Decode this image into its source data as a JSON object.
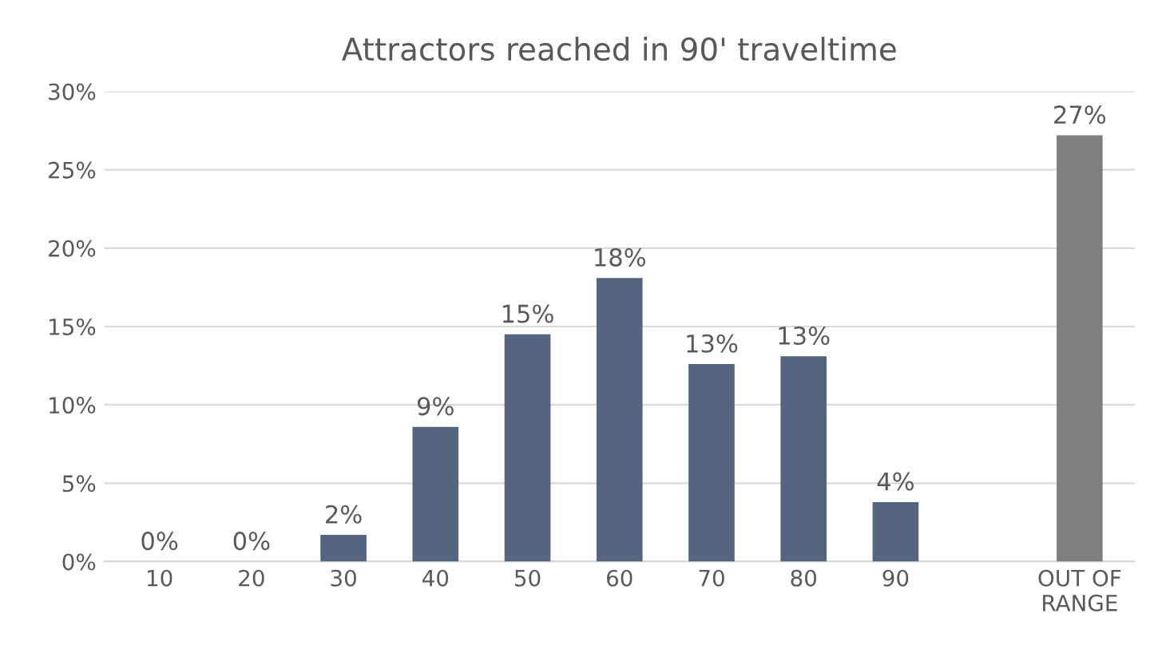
{
  "chart_data": {
    "type": "bar",
    "title": "Attractors reached in 90' traveltime",
    "categories": [
      "10",
      "20",
      "30",
      "40",
      "50",
      "60",
      "70",
      "80",
      "90",
      null,
      "OUT OF\nRANGE"
    ],
    "values": [
      0,
      0,
      1.7,
      8.6,
      14.5,
      18.1,
      12.6,
      13.1,
      3.8,
      null,
      27.2
    ],
    "value_labels": [
      "0%",
      "0%",
      "2%",
      "9%",
      "15%",
      "18%",
      "13%",
      "13%",
      "4%",
      null,
      "27%"
    ],
    "colors": [
      "#55647f",
      "#55647f",
      "#55647f",
      "#55647f",
      "#55647f",
      "#55647f",
      "#55647f",
      "#55647f",
      "#55647f",
      "#55647f",
      "#7f7f7f"
    ],
    "ylim": [
      0,
      30
    ],
    "yticks": [
      {
        "value": 0,
        "label": "0%"
      },
      {
        "value": 5,
        "label": "5%"
      },
      {
        "value": 10,
        "label": "10%"
      },
      {
        "value": 15,
        "label": "15%"
      },
      {
        "value": 20,
        "label": "20%"
      },
      {
        "value": 25,
        "label": "25%"
      },
      {
        "value": 30,
        "label": "30%"
      }
    ],
    "grid": "y",
    "legend": false
  }
}
